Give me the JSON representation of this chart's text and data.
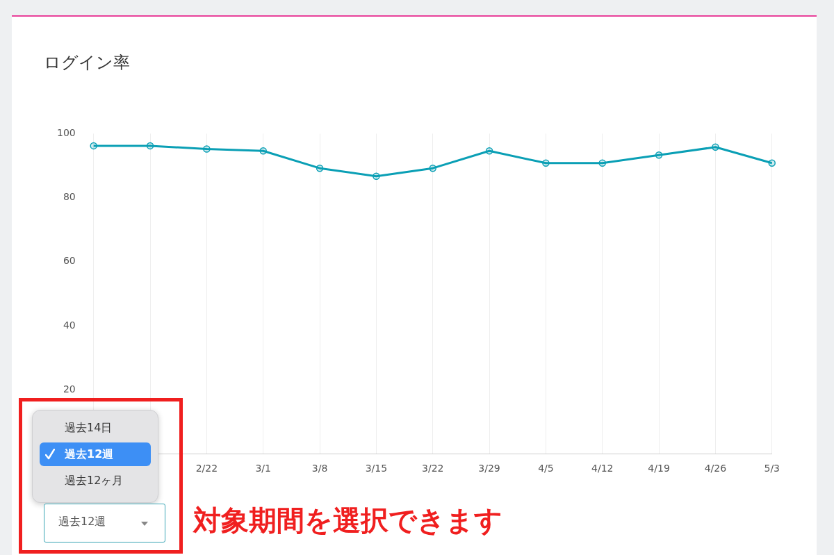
{
  "chart_data": {
    "type": "line",
    "title": "ログイン率",
    "categories": [
      null,
      null,
      "2/22",
      "3/1",
      "3/8",
      "3/15",
      "3/22",
      "3/29",
      "4/5",
      "4/12",
      "4/19",
      "4/26",
      "5/3"
    ],
    "series": [
      {
        "color": "#0a9fb5",
        "values": [
          96.2,
          96.2,
          95.2,
          94.6,
          89.2,
          86.7,
          89.2,
          94.6,
          90.8,
          90.8,
          93.3,
          95.8,
          90.8
        ]
      }
    ],
    "ylim": [
      0,
      100
    ],
    "yticks": [
      20,
      40,
      60,
      80,
      100
    ],
    "grid": "x",
    "legend": false,
    "marker": "circle",
    "line_style": "solid",
    "annotations": [
      "過去14日",
      "過去12週",
      "過去12ヶ月",
      "過去12週",
      "対象期間を選択できます"
    ]
  }
}
